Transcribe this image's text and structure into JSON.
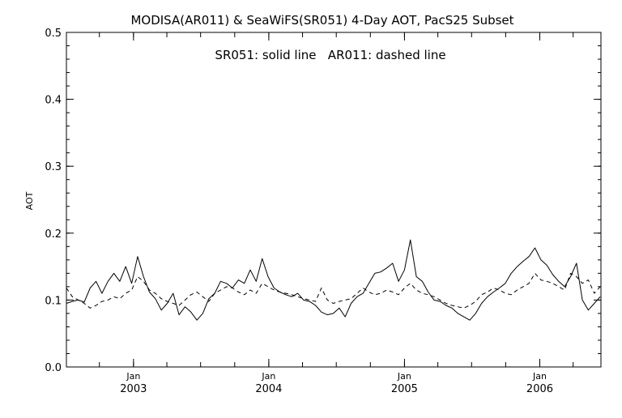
{
  "chart_data": {
    "type": "line",
    "title": "MODISA(AR011) & SeaWiFS(SR051) 4-Day AOT, PacS25 Subset",
    "annotation": "SR051: solid line   AR011: dashed line",
    "ylabel": "AOT",
    "xlabel": "",
    "ylim": [
      0.0,
      0.5
    ],
    "yticks": [
      "0.0",
      "0.1",
      "0.2",
      "0.3",
      "0.4",
      "0.5"
    ],
    "xlim": [
      "2002-07-04",
      "2006-06-15"
    ],
    "xticks": [
      {
        "month": "Jan",
        "year": "2003",
        "date": "2003-01-01"
      },
      {
        "month": "Jan",
        "year": "2004",
        "date": "2004-01-01"
      },
      {
        "month": "Jan",
        "year": "2005",
        "date": "2005-01-01"
      },
      {
        "month": "Jan",
        "year": "2006",
        "date": "2006-01-01"
      }
    ],
    "grid": false,
    "x": [
      "2002-07-04",
      "2002-07-20",
      "2002-08-05",
      "2002-08-21",
      "2002-09-06",
      "2002-09-22",
      "2002-10-08",
      "2002-10-24",
      "2002-11-09",
      "2002-11-25",
      "2002-12-11",
      "2002-12-27",
      "2003-01-12",
      "2003-01-28",
      "2003-02-13",
      "2003-03-01",
      "2003-03-17",
      "2003-04-02",
      "2003-04-18",
      "2003-05-04",
      "2003-05-20",
      "2003-06-05",
      "2003-06-21",
      "2003-07-07",
      "2003-07-23",
      "2003-08-08",
      "2003-08-24",
      "2003-09-09",
      "2003-09-25",
      "2003-10-11",
      "2003-10-27",
      "2003-11-12",
      "2003-11-28",
      "2003-12-14",
      "2003-12-30",
      "2004-01-15",
      "2004-01-31",
      "2004-02-16",
      "2004-03-03",
      "2004-03-19",
      "2004-04-04",
      "2004-04-20",
      "2004-05-06",
      "2004-05-22",
      "2004-06-07",
      "2004-06-23",
      "2004-07-09",
      "2004-07-25",
      "2004-08-10",
      "2004-08-26",
      "2004-09-11",
      "2004-09-27",
      "2004-10-13",
      "2004-10-29",
      "2004-11-14",
      "2004-11-30",
      "2004-12-16",
      "2005-01-01",
      "2005-01-17",
      "2005-02-02",
      "2005-02-18",
      "2005-03-06",
      "2005-03-22",
      "2005-04-07",
      "2005-04-23",
      "2005-05-09",
      "2005-05-25",
      "2005-06-10",
      "2005-06-26",
      "2005-07-12",
      "2005-07-28",
      "2005-08-13",
      "2005-08-29",
      "2005-09-14",
      "2005-09-30",
      "2005-10-16",
      "2005-11-01",
      "2005-11-17",
      "2005-12-03",
      "2005-12-19",
      "2006-01-04",
      "2006-01-20",
      "2006-02-05",
      "2006-02-21",
      "2006-03-09",
      "2006-03-25",
      "2006-04-10",
      "2006-04-26",
      "2006-05-12",
      "2006-05-28",
      "2006-06-13"
    ],
    "series": [
      {
        "name": "SR051",
        "style": "solid",
        "values": [
          0.095,
          0.098,
          0.1,
          0.097,
          0.118,
          0.128,
          0.11,
          0.128,
          0.14,
          0.128,
          0.15,
          0.125,
          0.165,
          0.135,
          0.112,
          0.102,
          0.085,
          0.095,
          0.11,
          0.078,
          0.09,
          0.082,
          0.07,
          0.08,
          0.102,
          0.11,
          0.128,
          0.125,
          0.118,
          0.13,
          0.125,
          0.145,
          0.128,
          0.162,
          0.135,
          0.118,
          0.112,
          0.108,
          0.105,
          0.11,
          0.1,
          0.098,
          0.092,
          0.082,
          0.078,
          0.08,
          0.088,
          0.075,
          0.095,
          0.105,
          0.11,
          0.125,
          0.14,
          0.142,
          0.148,
          0.155,
          0.128,
          0.145,
          0.19,
          0.135,
          0.128,
          0.112,
          0.1,
          0.098,
          0.092,
          0.088,
          0.08,
          0.075,
          0.07,
          0.08,
          0.095,
          0.105,
          0.112,
          0.118,
          0.125,
          0.14,
          0.15,
          0.158,
          0.165,
          0.178,
          0.16,
          0.152,
          0.138,
          0.128,
          0.12,
          0.135,
          0.155,
          0.1,
          0.085,
          0.095,
          0.105
        ]
      },
      {
        "name": "AR011",
        "style": "dashed",
        "values": [
          0.118,
          0.105,
          0.1,
          0.095,
          0.088,
          0.092,
          0.098,
          0.1,
          0.105,
          0.102,
          0.11,
          0.115,
          0.135,
          0.128,
          0.115,
          0.11,
          0.102,
          0.098,
          0.095,
          0.092,
          0.1,
          0.108,
          0.112,
          0.105,
          0.098,
          0.11,
          0.115,
          0.12,
          0.118,
          0.112,
          0.108,
          0.115,
          0.11,
          0.125,
          0.12,
          0.115,
          0.112,
          0.11,
          0.108,
          0.105,
          0.102,
          0.1,
          0.098,
          0.118,
          0.1,
          0.095,
          0.098,
          0.1,
          0.102,
          0.11,
          0.118,
          0.112,
          0.108,
          0.11,
          0.115,
          0.112,
          0.108,
          0.118,
          0.125,
          0.115,
          0.11,
          0.108,
          0.105,
          0.1,
          0.095,
          0.092,
          0.09,
          0.088,
          0.092,
          0.098,
          0.108,
          0.112,
          0.118,
          0.115,
          0.11,
          0.108,
          0.115,
          0.12,
          0.125,
          0.14,
          0.13,
          0.128,
          0.125,
          0.12,
          0.115,
          0.14,
          0.135,
          0.125,
          0.13,
          0.11,
          0.12
        ]
      }
    ]
  }
}
